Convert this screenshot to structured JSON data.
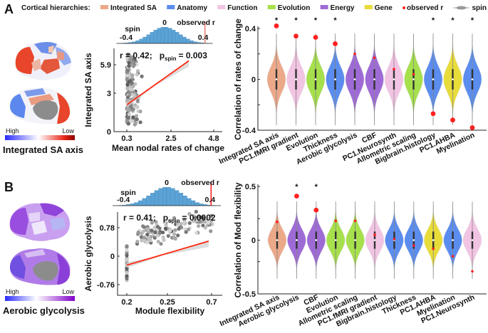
{
  "legend": {
    "title": "Cortical hierarchies:",
    "items": [
      {
        "label": "Integrated SA",
        "color": "#EBA98A"
      },
      {
        "label": "Anatomy",
        "color": "#5B8DEE"
      },
      {
        "label": "Function",
        "color": "#F2C4E3"
      },
      {
        "label": "Evolution",
        "color": "#A6E04C"
      },
      {
        "label": "Energy",
        "color": "#9E6BD6"
      },
      {
        "label": "Gene",
        "color": "#E8DC3A"
      }
    ],
    "observed_label": "observed r",
    "observed_color": "#FF2020",
    "spin_label": "spin"
  },
  "panels": [
    {
      "label": "A",
      "brain": {
        "title": "Integrated SA axis",
        "high": "High",
        "low": "Low",
        "colormap": [
          "#3030FF",
          "#FFFFFF",
          "#8B0000"
        ]
      },
      "chart_data": [
        {
          "type": "bar",
          "name": "spin-null-histogram",
          "bin_range": [
            -0.45,
            0.45
          ],
          "relative_frequency": [
            0.016,
            0.032,
            0.06,
            0.1,
            0.17,
            0.27,
            0.39,
            0.53,
            0.68,
            0.82,
            0.93,
            0.99,
            0.99,
            0.93,
            0.82,
            0.68,
            0.53,
            0.39,
            0.27,
            0.17,
            0.1,
            0.06,
            0.032,
            0.016
          ],
          "tick_labels": [
            "-0.4",
            "0",
            "0.4"
          ],
          "spin_label": "spin",
          "observed_label": "observed r",
          "observed_r": 0.42
        },
        {
          "type": "scatter",
          "stat_text": {
            "r": "r = 0.42;",
            "p_main": "p",
            "p_sub": "spin",
            "p_value": "= 0.003"
          },
          "xlabel": "Mean nodal rates of change",
          "ylabel": "Integrated SA axis",
          "x_ticks": [
            "0.3",
            "2.5",
            "4.8"
          ],
          "y_ticks": [
            "0",
            "3",
            "5.9"
          ],
          "fit_line": {
            "x": [
              0.3,
              3.46
            ],
            "y": [
              2.1,
              6.3
            ]
          }
        },
        {
          "type": "violin",
          "ylabel": "Correlation of rates of change",
          "ylim": [
            -0.4,
            0.4
          ],
          "y_ticks": [
            "-0.4",
            "0",
            "0.4"
          ],
          "significance_marker": "*",
          "categories": [
            {
              "label": "Integrated SA axis",
              "group": "Integrated SA",
              "observed_r": 0.42,
              "significant": true
            },
            {
              "label": "PC1.fMRI gradient",
              "group": "Function",
              "observed_r": 0.34,
              "significant": true
            },
            {
              "label": "Evolution",
              "group": "Evolution",
              "observed_r": 0.33,
              "significant": true
            },
            {
              "label": "Thickness",
              "group": "Anatomy",
              "observed_r": 0.28,
              "significant": true
            },
            {
              "label": "Aerobic glycolysis",
              "group": "Energy",
              "observed_r": 0.2,
              "significant": false
            },
            {
              "label": "CBF",
              "group": "Energy",
              "observed_r": 0.17,
              "significant": false
            },
            {
              "label": "PC1.Neurosynth",
              "group": "Function",
              "observed_r": 0.08,
              "significant": false
            },
            {
              "label": "Allometric scaling",
              "group": "Evolution",
              "observed_r": 0.04,
              "significant": false
            },
            {
              "label": "Bigbrain.histology",
              "group": "Anatomy",
              "observed_r": -0.27,
              "significant": true
            },
            {
              "label": "PC1.AHBA",
              "group": "Gene",
              "observed_r": -0.32,
              "significant": true
            },
            {
              "label": "Myelination",
              "group": "Anatomy",
              "observed_r": -0.38,
              "significant": true
            }
          ]
        }
      ]
    },
    {
      "label": "B",
      "brain": {
        "title": "Aerobic glycolysis",
        "high": "High",
        "low": "Low",
        "colormap": [
          "#3030FF",
          "#FFFFFF",
          "#8000C0"
        ]
      },
      "chart_data": [
        {
          "type": "bar",
          "name": "spin-null-histogram",
          "bin_range": [
            -0.45,
            0.45
          ],
          "relative_frequency": [
            0.016,
            0.032,
            0.06,
            0.1,
            0.17,
            0.27,
            0.39,
            0.53,
            0.68,
            0.82,
            0.93,
            0.99,
            0.99,
            0.93,
            0.82,
            0.68,
            0.53,
            0.39,
            0.27,
            0.17,
            0.1,
            0.06,
            0.032,
            0.016
          ],
          "tick_labels": [
            "-0.4",
            "0",
            "0.4"
          ],
          "spin_label": "spin",
          "observed_label": "observed r",
          "observed_r": 0.41
        },
        {
          "type": "scatter",
          "stat_text": {
            "r": "r = 0.41;",
            "p_main": "p",
            "p_sub": "spin",
            "p_value": "= 0.0002"
          },
          "xlabel": "Module flexibility",
          "ylabel": "Aerobic glycolysis",
          "x_ticks": [
            "0.2",
            "0.25",
            "0.7"
          ],
          "y_ticks": [
            "-0.76",
            "0",
            "0.78"
          ],
          "fit_line": {
            "x": [
              0.2,
              0.67
            ],
            "y": [
              -0.24,
              0.41
            ]
          }
        },
        {
          "type": "violin",
          "ylabel": "Correlation of Mod flexibility",
          "ylim": [
            -0.5,
            0.5
          ],
          "y_ticks": [
            "-0.5",
            "0",
            "0.5"
          ],
          "significance_marker": "*",
          "categories": [
            {
              "label": "Integrated SA axis",
              "group": "Integrated SA",
              "observed_r": 0.17,
              "significant": false
            },
            {
              "label": "Aerobic glycolysis",
              "group": "Energy",
              "observed_r": 0.41,
              "significant": true
            },
            {
              "label": "CBF",
              "group": "Energy",
              "observed_r": 0.28,
              "significant": true
            },
            {
              "label": "Evolution",
              "group": "Evolution",
              "observed_r": 0.18,
              "significant": false
            },
            {
              "label": "Allometric scaling",
              "group": "Evolution",
              "observed_r": 0.18,
              "significant": false
            },
            {
              "label": "PC1.fMRI gradient",
              "group": "Function",
              "observed_r": 0.05,
              "significant": false
            },
            {
              "label": "Bigbrain.histology",
              "group": "Anatomy",
              "observed_r": 0.01,
              "significant": false
            },
            {
              "label": "Thickness",
              "group": "Anatomy",
              "observed_r": -0.05,
              "significant": false
            },
            {
              "label": "PC1.AHBA",
              "group": "Gene",
              "observed_r": -0.08,
              "significant": false
            },
            {
              "label": "Myelination",
              "group": "Anatomy",
              "observed_r": -0.15,
              "significant": false
            },
            {
              "label": "PC1.Neurosynth",
              "group": "Function",
              "observed_r": -0.29,
              "significant": false
            }
          ]
        }
      ]
    }
  ]
}
